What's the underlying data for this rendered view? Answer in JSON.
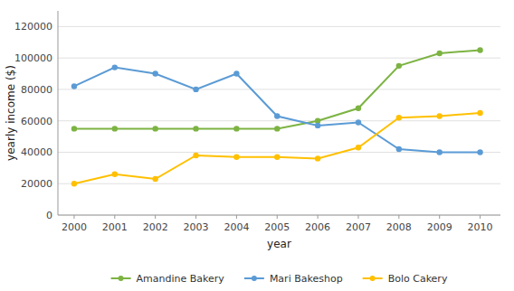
{
  "chart_data": {
    "type": "line",
    "xlabel": "year",
    "ylabel": "yearly income ($)",
    "x": [
      2000,
      2001,
      2002,
      2003,
      2004,
      2005,
      2006,
      2007,
      2008,
      2009,
      2010
    ],
    "series": [
      {
        "name": "Amandine Bakery",
        "color": "#7cb342",
        "marker": "circle",
        "values": [
          55000,
          55000,
          55000,
          55000,
          55000,
          55000,
          60000,
          68000,
          95000,
          103000,
          105000
        ]
      },
      {
        "name": "Mari Bakeshop",
        "color": "#5b9bd5",
        "marker": "circle",
        "values": [
          82000,
          94000,
          90000,
          80000,
          90000,
          63000,
          57000,
          59000,
          42000,
          40000,
          40000
        ]
      },
      {
        "name": "Bolo Cakery",
        "color": "#ffc000",
        "marker": "circle",
        "values": [
          20000,
          26000,
          23000,
          38000,
          37000,
          37000,
          36000,
          43000,
          62000,
          63000,
          65000
        ]
      }
    ],
    "xlim": [
      1999.6,
      2010.5
    ],
    "xticks": [
      2000,
      2001,
      2002,
      2003,
      2004,
      2005,
      2006,
      2007,
      2008,
      2009,
      2010
    ],
    "ylim": [
      0,
      130000
    ],
    "yticks": [
      0,
      20000,
      40000,
      60000,
      80000,
      100000,
      120000
    ],
    "grid": true,
    "legend": "bottom"
  }
}
